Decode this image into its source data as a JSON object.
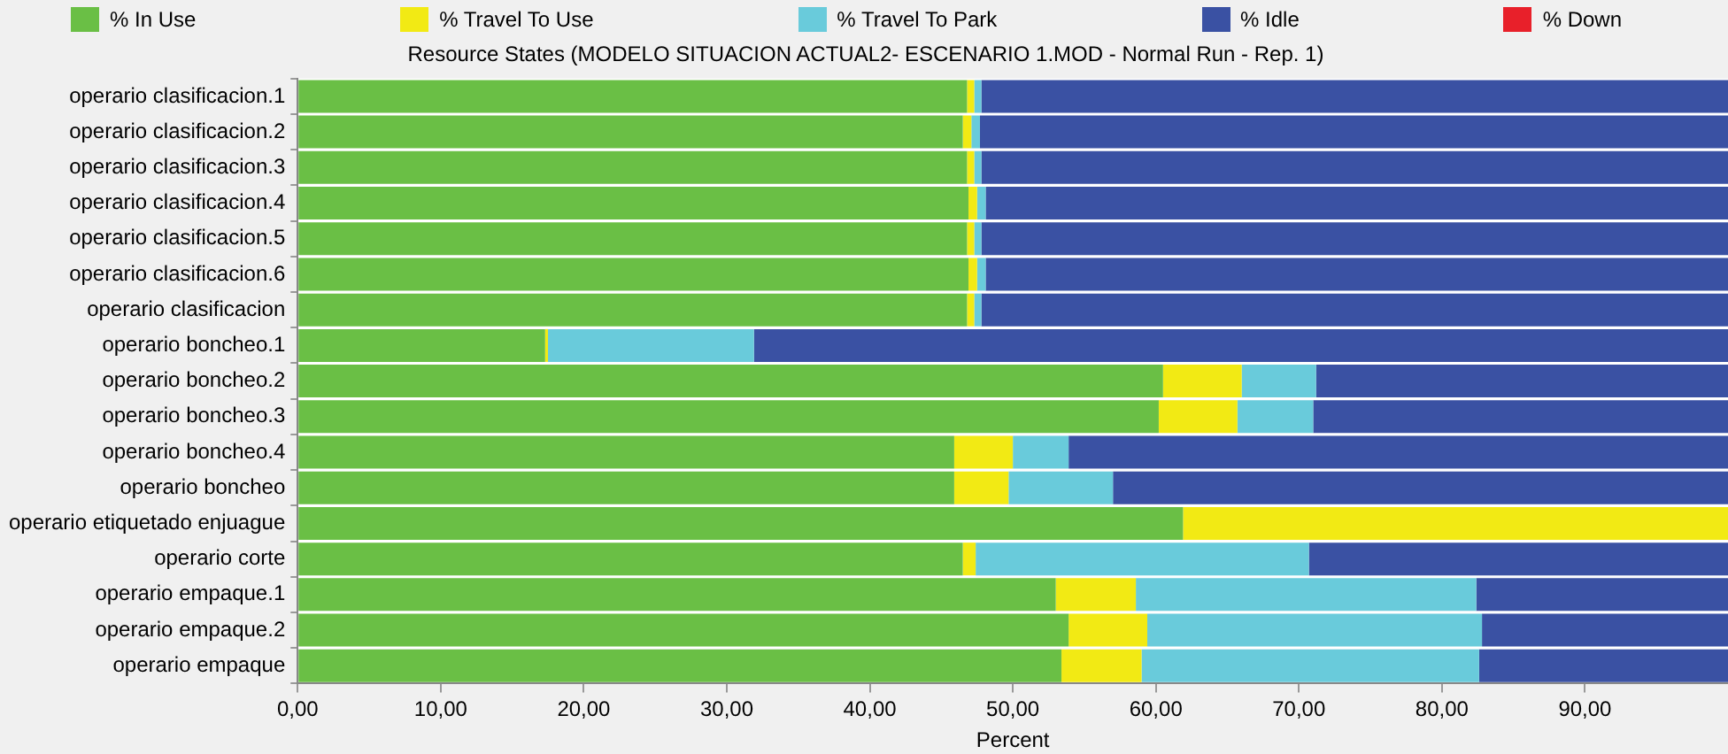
{
  "chart_data": {
    "type": "bar",
    "orientation": "horizontal",
    "stacked": true,
    "title": "Resource States (MODELO SITUACION ACTUAL2- ESCENARIO 1.MOD - Normal Run - Rep. 1)",
    "xlabel": "Percent",
    "categories": [
      "operario clasificacion.1",
      "operario clasificacion.2",
      "operario clasificacion.3",
      "operario clasificacion.4",
      "operario clasificacion.5",
      "operario clasificacion.6",
      "operario clasificacion",
      "operario boncheo.1",
      "operario boncheo.2",
      "operario boncheo.3",
      "operario boncheo.4",
      "operario boncheo",
      "operario etiquetado enjuague",
      "operario corte",
      "operario empaque.1",
      "operario empaque.2",
      "operario empaque"
    ],
    "series": [
      {
        "name": "% In Use",
        "color": "#6abf45",
        "values": [
          46.8,
          46.5,
          46.8,
          46.9,
          46.8,
          46.9,
          46.8,
          17.3,
          60.5,
          60.2,
          45.9,
          45.9,
          61.9,
          46.5,
          53.0,
          53.9,
          53.4
        ]
      },
      {
        "name": "% Travel To Use",
        "color": "#f2ea14",
        "values": [
          0.5,
          0.6,
          0.5,
          0.6,
          0.5,
          0.6,
          0.5,
          0.2,
          5.5,
          5.5,
          4.1,
          3.8,
          38.1,
          0.9,
          5.6,
          5.5,
          5.6
        ]
      },
      {
        "name": "% Travel To Park",
        "color": "#69cbdb",
        "values": [
          0.5,
          0.6,
          0.5,
          0.6,
          0.5,
          0.6,
          0.5,
          14.4,
          5.2,
          5.3,
          3.9,
          7.3,
          0,
          23.3,
          23.8,
          23.4,
          23.6
        ]
      },
      {
        "name": "% Idle",
        "color": "#3a51a3",
        "values": [
          52.2,
          52.3,
          52.2,
          51.9,
          52.2,
          51.9,
          52.2,
          68.1,
          28.8,
          29.0,
          46.1,
          43.0,
          0,
          29.3,
          17.6,
          17.2,
          17.4
        ]
      },
      {
        "name": "% Down",
        "color": "#e8202a",
        "values": [
          0,
          0,
          0,
          0,
          0,
          0,
          0,
          0,
          0,
          0,
          0,
          0,
          0,
          0,
          0,
          0,
          0
        ]
      }
    ],
    "xlim": [
      0,
      100
    ],
    "xticks": [
      {
        "value": 0,
        "label": "0,00"
      },
      {
        "value": 10,
        "label": "10,00"
      },
      {
        "value": 20,
        "label": "20,00"
      },
      {
        "value": 30,
        "label": "30,00"
      },
      {
        "value": 40,
        "label": "40,00"
      },
      {
        "value": 50,
        "label": "50,00"
      },
      {
        "value": 60,
        "label": "60,00"
      },
      {
        "value": 70,
        "label": "70,00"
      },
      {
        "value": 80,
        "label": "80,00"
      },
      {
        "value": 90,
        "label": "90,00"
      }
    ],
    "grid": false,
    "legend": "top"
  }
}
